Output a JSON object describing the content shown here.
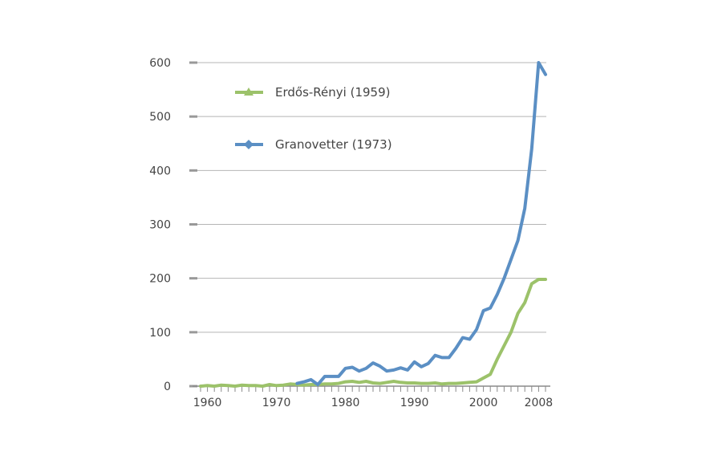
{
  "chart_data": {
    "type": "line",
    "title": "",
    "xlabel": "",
    "ylabel": "",
    "xlim": [
      1959,
      2009
    ],
    "ylim": [
      0,
      600
    ],
    "x_ticks": [
      "1960",
      "1970",
      "1980",
      "1990",
      "2000",
      "2008"
    ],
    "y_ticks": [
      "0",
      "100",
      "200",
      "300",
      "400",
      "500",
      "600"
    ],
    "grid": "horizontal",
    "legend_position": "top-left",
    "series": [
      {
        "name": "Erdős-Rényi (1959)",
        "color": "#9cc26a",
        "marker": "triangle",
        "x": [
          1959,
          1960,
          1961,
          1962,
          1963,
          1964,
          1965,
          1966,
          1967,
          1968,
          1969,
          1970,
          1971,
          1972,
          1973,
          1974,
          1975,
          1976,
          1977,
          1978,
          1979,
          1980,
          1981,
          1982,
          1983,
          1984,
          1985,
          1986,
          1987,
          1988,
          1989,
          1990,
          1991,
          1992,
          1993,
          1994,
          1995,
          1996,
          1997,
          1998,
          1999,
          2000,
          2001,
          2002,
          2003,
          2004,
          2005,
          2006,
          2007,
          2008,
          2009
        ],
        "y": [
          0,
          1,
          0,
          2,
          1,
          0,
          2,
          1,
          1,
          0,
          3,
          1,
          2,
          4,
          3,
          2,
          3,
          3,
          4,
          4,
          5,
          8,
          9,
          7,
          9,
          6,
          5,
          7,
          9,
          7,
          6,
          6,
          5,
          5,
          6,
          4,
          5,
          5,
          6,
          7,
          8,
          15,
          22,
          50,
          75,
          100,
          135,
          155,
          190,
          198,
          198
        ]
      },
      {
        "name": "Granovetter (1973)",
        "color": "#5b8fc4",
        "marker": "diamond",
        "x": [
          1973,
          1974,
          1975,
          1976,
          1977,
          1978,
          1979,
          1980,
          1981,
          1982,
          1983,
          1984,
          1985,
          1986,
          1987,
          1988,
          1989,
          1990,
          1991,
          1992,
          1993,
          1994,
          1995,
          1996,
          1997,
          1998,
          1999,
          2000,
          2001,
          2002,
          2003,
          2004,
          2005,
          2006,
          2007,
          2008,
          2009
        ],
        "y": [
          5,
          8,
          12,
          3,
          18,
          18,
          18,
          33,
          35,
          28,
          33,
          43,
          37,
          28,
          30,
          34,
          30,
          45,
          36,
          42,
          57,
          53,
          53,
          70,
          90,
          87,
          105,
          140,
          145,
          170,
          200,
          235,
          270,
          330,
          440,
          600,
          578
        ]
      }
    ]
  }
}
